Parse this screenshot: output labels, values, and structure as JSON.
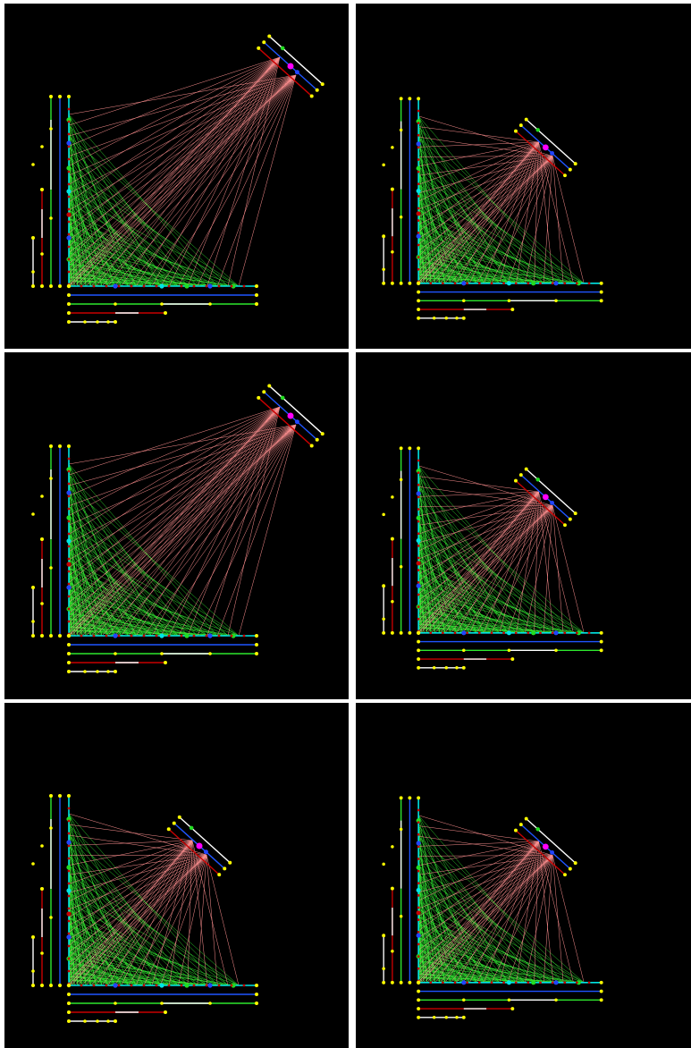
{
  "panels": [
    {
      "apex_mode": "single",
      "lens_angle": -42
    },
    {
      "apex_mode": "split",
      "lens_angle": -42
    },
    {
      "apex_mode": "single",
      "lens_angle": -42
    },
    {
      "apex_mode": "split",
      "lens_angle": -42
    },
    {
      "apex_mode": "split",
      "lens_angle": -42
    },
    {
      "apex_mode": "split",
      "lens_angle": -42
    }
  ],
  "colors": {
    "background": "#000000",
    "frame": "#ffffff",
    "axis": "#00e5e5",
    "bus_blue": "#1f55ff",
    "bus_green": "#2ee82e",
    "bus_red": "#c80000",
    "bus_white": "#ffffff",
    "node": "#ffff00",
    "ray_pink": "#ff9090",
    "ray_green": "#33ee33",
    "focus": "#ff00ff",
    "marker_green": "#22dd22",
    "marker_blue": "#2244ff",
    "marker_cyan": "#00e5e5"
  }
}
